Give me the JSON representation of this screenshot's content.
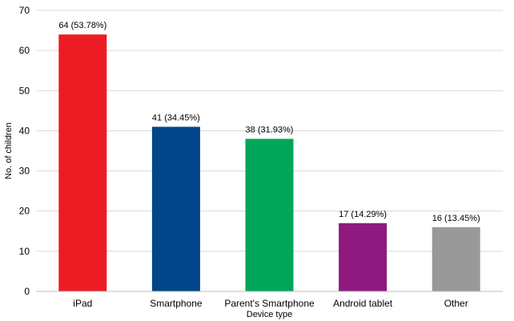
{
  "chart_data": {
    "type": "bar",
    "categories": [
      "iPad",
      "Smartphone",
      "Parent's Smartphone",
      "Android tablet",
      "Other"
    ],
    "values": [
      64,
      41,
      38,
      17,
      16
    ],
    "data_labels": [
      "64 (53.78%)",
      "41 (34.45%)",
      "38 (31.93%)",
      "17 (14.29%)",
      "16 (13.45%)"
    ],
    "colors": [
      "#ed1c24",
      "#004587",
      "#00a65a",
      "#8e1a7f",
      "#999999"
    ],
    "title": "",
    "xlabel": "Device type",
    "ylabel": "No. of children",
    "ylim": [
      0,
      70
    ],
    "yticks": [
      0,
      10,
      20,
      30,
      40,
      50,
      60,
      70
    ],
    "grid": true,
    "gridline_color": "#d9d9d9",
    "legend": "none"
  }
}
